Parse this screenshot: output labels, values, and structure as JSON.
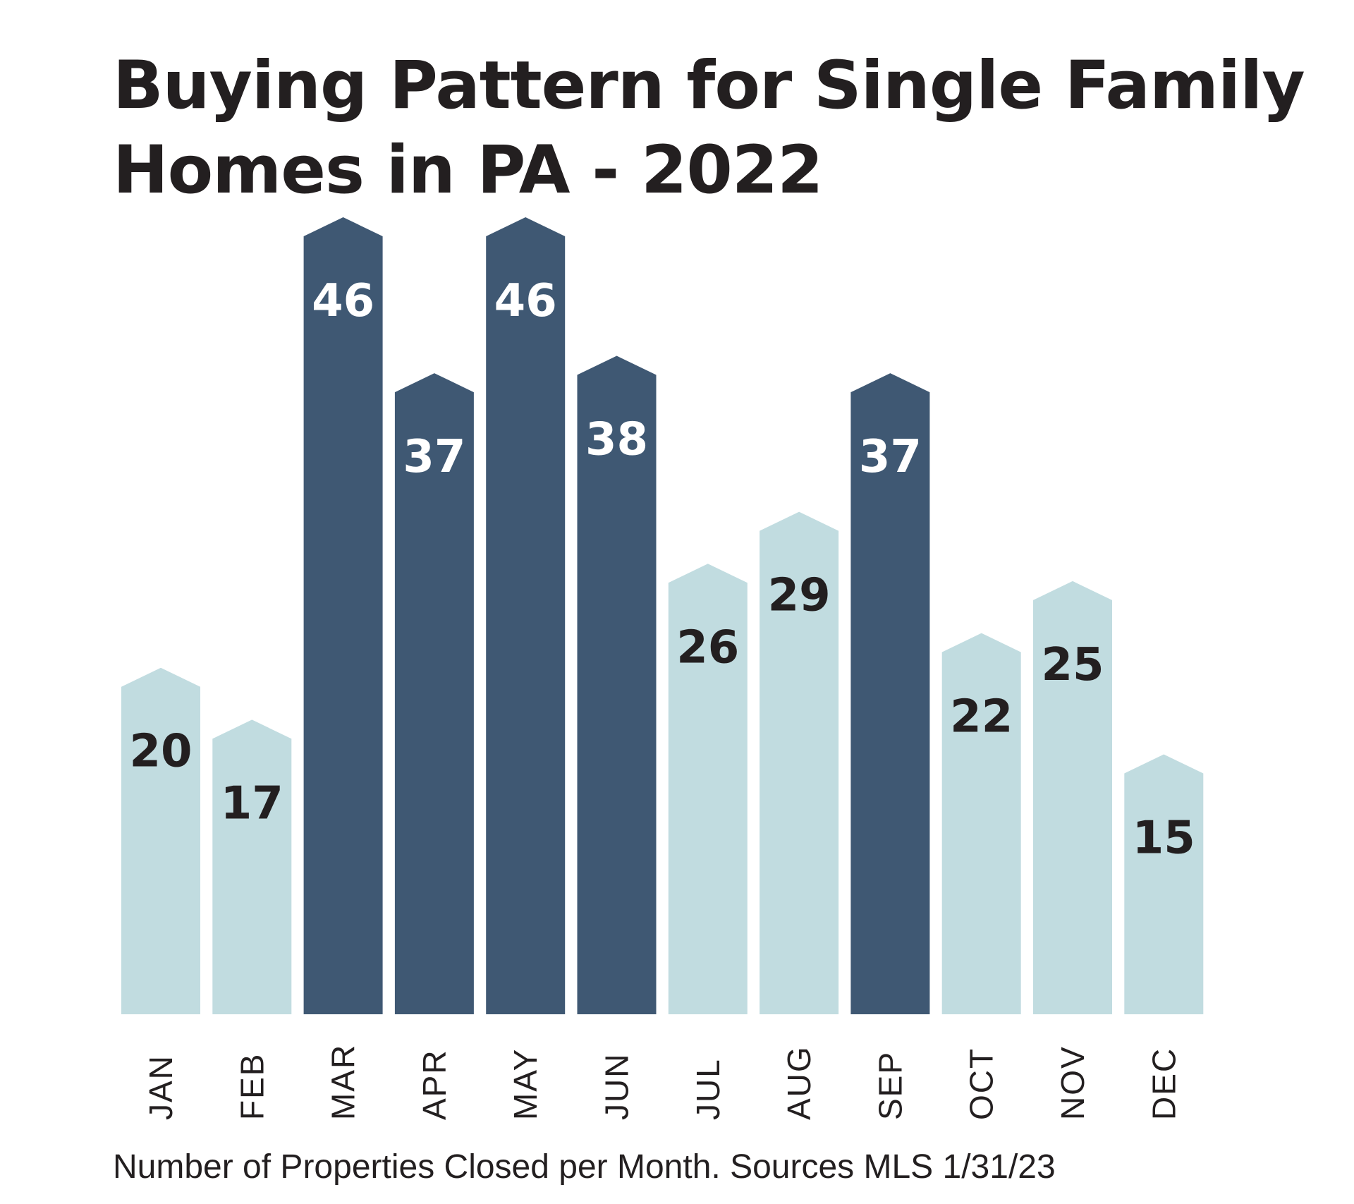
{
  "title_lines": [
    "Buying Pattern for Single Family",
    "Homes in PA - 2022"
  ],
  "caption": "Number of Properties Closed per Month. Sources MLS 1/31/23",
  "colors": {
    "highlight": "#3f5873",
    "base": "#c1dce0",
    "label_on_highlight": "#ffffff",
    "label_on_base": "#231f20"
  },
  "chart_data": {
    "type": "bar",
    "title": "Buying Pattern for Single Family Homes in PA - 2022",
    "categories": [
      "JAN",
      "FEB",
      "MAR",
      "APR",
      "MAY",
      "JUN",
      "JUL",
      "AUG",
      "SEP",
      "OCT",
      "NOV",
      "DEC"
    ],
    "values": [
      20,
      17,
      46,
      37,
      46,
      38,
      26,
      29,
      37,
      22,
      25,
      15
    ],
    "highlighted": [
      false,
      false,
      true,
      true,
      true,
      true,
      false,
      false,
      true,
      false,
      false,
      false
    ],
    "xlabel": "",
    "ylabel": "",
    "ylim": [
      0,
      46
    ],
    "grid": false,
    "legend": "none"
  }
}
